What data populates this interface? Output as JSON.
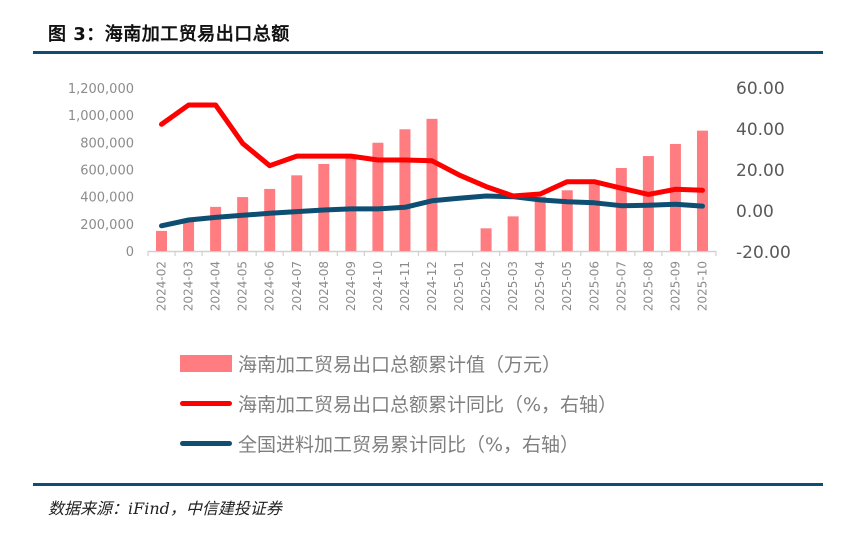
{
  "header": {
    "title": "图 3：海南加工贸易出口总额"
  },
  "footer": {
    "source": "数据来源：iFind，中信建投证券"
  },
  "colors": {
    "bar": "#ff7c80",
    "red_line": "#ff0000",
    "blue_line": "#0e4e72",
    "rule": "#0e4e72"
  },
  "chart_data": {
    "type": "bar+line",
    "title": "海南加工贸易出口总额",
    "categories": [
      "2024-02",
      "2024-03",
      "2024-04",
      "2024-05",
      "2024-06",
      "2024-07",
      "2024-08",
      "2024-09",
      "2024-10",
      "2024-11",
      "2024-12",
      "2025-01",
      "2025-02",
      "2025-03",
      "2025-04",
      "2025-05",
      "2025-06",
      "2025-07",
      "2025-08",
      "2025-09",
      "2025-10"
    ],
    "series": [
      {
        "name": "海南加工贸易出口总额累计值（万元）",
        "type": "bar",
        "axis": "left",
        "values": [
          148000,
          225000,
          325000,
          397000,
          457000,
          557000,
          641000,
          700000,
          797000,
          896000,
          973000,
          null,
          167000,
          255000,
          400000,
          447000,
          491000,
          611000,
          699000,
          788000,
          886000
        ]
      },
      {
        "name": "海南加工贸易出口总额累计同比（%，右轴）",
        "type": "line",
        "axis": "right",
        "values": [
          42.3,
          51.7,
          51.7,
          33.0,
          22.1,
          26.8,
          26.8,
          26.8,
          24.9,
          24.9,
          24.5,
          17.6,
          11.9,
          7.3,
          8.3,
          14.3,
          14.3,
          11.1,
          8.1,
          10.6,
          10.1
        ]
      },
      {
        "name": "全国进料加工贸易累计同比（%，右轴）",
        "type": "line",
        "axis": "right",
        "values": [
          -7.2,
          -4.4,
          -3.1,
          -2.1,
          -1.1,
          -0.3,
          0.5,
          1.0,
          1.0,
          1.8,
          5.0,
          6.2,
          7.3,
          7.0,
          5.4,
          4.5,
          4.0,
          2.6,
          2.8,
          3.3,
          2.4
        ]
      }
    ],
    "left_axis": {
      "ylim": [
        0,
        1200000
      ],
      "ticks": [
        "0",
        "200,000",
        "400,000",
        "600,000",
        "800,000",
        "1,000,000",
        "1,200,000"
      ],
      "tick_values": [
        0,
        200000,
        400000,
        600000,
        800000,
        1000000,
        1200000
      ]
    },
    "right_axis": {
      "ylim": [
        -20,
        60
      ],
      "ticks": [
        "-20.00",
        "0.00",
        "20.00",
        "40.00",
        "60.00"
      ],
      "tick_values": [
        -20,
        0,
        20,
        40,
        60
      ]
    },
    "xlabel": "",
    "ylabel": "",
    "grid": false,
    "legend_position": "bottom"
  }
}
